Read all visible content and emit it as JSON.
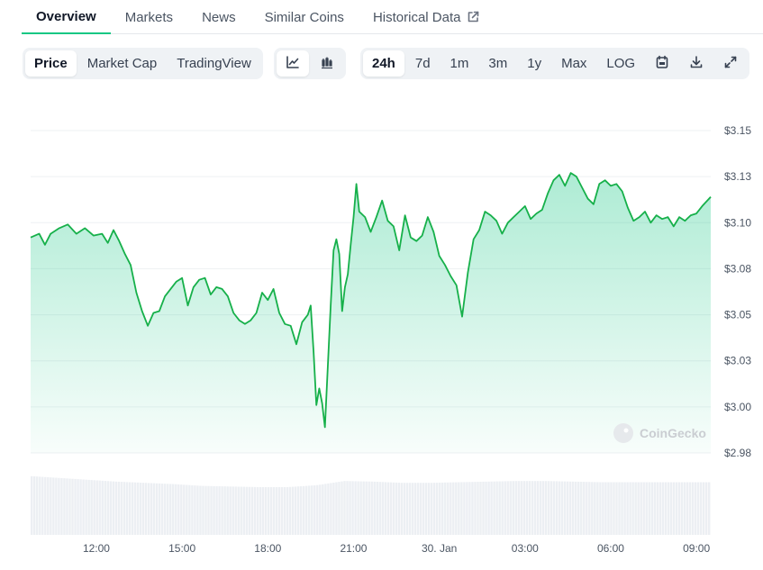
{
  "tabs": [
    {
      "label": "Overview",
      "active": true
    },
    {
      "label": "Markets",
      "active": false
    },
    {
      "label": "News",
      "active": false
    },
    {
      "label": "Similar Coins",
      "active": false
    },
    {
      "label": "Historical Data",
      "active": false,
      "icon": "external-link-icon"
    }
  ],
  "toolbar": {
    "chart_types": [
      {
        "label": "Price",
        "active": true
      },
      {
        "label": "Market Cap",
        "active": false
      },
      {
        "label": "TradingView",
        "active": false
      }
    ],
    "view_icons": [
      {
        "icon": "line-chart-icon",
        "active": true
      },
      {
        "icon": "candlestick-icon",
        "active": false
      }
    ],
    "ranges": [
      {
        "label": "24h",
        "active": true
      },
      {
        "label": "7d",
        "active": false
      },
      {
        "label": "1m",
        "active": false
      },
      {
        "label": "3m",
        "active": false
      },
      {
        "label": "1y",
        "active": false
      },
      {
        "label": "Max",
        "active": false
      },
      {
        "label": "LOG",
        "active": false
      }
    ],
    "tool_icons": [
      "calendar-icon",
      "download-icon",
      "expand-icon"
    ]
  },
  "watermark": "CoinGecko",
  "colors": {
    "line": "#16b04a",
    "accent": "#16c784",
    "volume": "#eceff3",
    "grid": "#eef0f3"
  },
  "chart_data": {
    "type": "area",
    "title": "",
    "xlabel": "",
    "ylabel": "",
    "x_tick_labels": [
      "12:00",
      "15:00",
      "18:00",
      "21:00",
      "30. Jan",
      "03:00",
      "06:00",
      "09:00"
    ],
    "x_tick_hours": [
      2.3,
      5.3,
      8.3,
      11.3,
      14.3,
      17.3,
      20.3,
      23.3
    ],
    "y_tick_labels": [
      "$3.15",
      "$3.13",
      "$3.10",
      "$3.08",
      "$3.05",
      "$3.03",
      "$3.00",
      "$2.98"
    ],
    "y_tick_values": [
      3.15,
      3.125,
      3.1,
      3.075,
      3.05,
      3.025,
      3.0,
      2.975
    ],
    "ylim": [
      2.975,
      3.15
    ],
    "x_range_hours": [
      0,
      23.8
    ],
    "grid": true,
    "price_series": [
      [
        0.0,
        3.092
      ],
      [
        0.3,
        3.094
      ],
      [
        0.5,
        3.088
      ],
      [
        0.7,
        3.094
      ],
      [
        1.0,
        3.097
      ],
      [
        1.3,
        3.099
      ],
      [
        1.6,
        3.094
      ],
      [
        1.9,
        3.097
      ],
      [
        2.2,
        3.093
      ],
      [
        2.5,
        3.094
      ],
      [
        2.7,
        3.089
      ],
      [
        2.9,
        3.096
      ],
      [
        3.1,
        3.09
      ],
      [
        3.3,
        3.083
      ],
      [
        3.5,
        3.077
      ],
      [
        3.7,
        3.062
      ],
      [
        3.9,
        3.052
      ],
      [
        4.1,
        3.044
      ],
      [
        4.3,
        3.051
      ],
      [
        4.5,
        3.052
      ],
      [
        4.7,
        3.06
      ],
      [
        4.9,
        3.064
      ],
      [
        5.1,
        3.068
      ],
      [
        5.3,
        3.07
      ],
      [
        5.5,
        3.055
      ],
      [
        5.7,
        3.065
      ],
      [
        5.9,
        3.069
      ],
      [
        6.1,
        3.07
      ],
      [
        6.3,
        3.061
      ],
      [
        6.5,
        3.065
      ],
      [
        6.7,
        3.064
      ],
      [
        6.9,
        3.06
      ],
      [
        7.1,
        3.051
      ],
      [
        7.3,
        3.047
      ],
      [
        7.5,
        3.045
      ],
      [
        7.7,
        3.047
      ],
      [
        7.9,
        3.051
      ],
      [
        8.1,
        3.062
      ],
      [
        8.3,
        3.058
      ],
      [
        8.5,
        3.064
      ],
      [
        8.7,
        3.051
      ],
      [
        8.9,
        3.045
      ],
      [
        9.1,
        3.044
      ],
      [
        9.3,
        3.034
      ],
      [
        9.5,
        3.046
      ],
      [
        9.7,
        3.05
      ],
      [
        9.8,
        3.055
      ],
      [
        9.9,
        3.03
      ],
      [
        10.0,
        3.001
      ],
      [
        10.1,
        3.01
      ],
      [
        10.2,
        3.002
      ],
      [
        10.3,
        2.989
      ],
      [
        10.4,
        3.022
      ],
      [
        10.5,
        3.055
      ],
      [
        10.6,
        3.085
      ],
      [
        10.7,
        3.091
      ],
      [
        10.8,
        3.083
      ],
      [
        10.9,
        3.052
      ],
      [
        11.0,
        3.065
      ],
      [
        11.1,
        3.072
      ],
      [
        11.2,
        3.088
      ],
      [
        11.3,
        3.103
      ],
      [
        11.4,
        3.121
      ],
      [
        11.5,
        3.106
      ],
      [
        11.7,
        3.103
      ],
      [
        11.9,
        3.095
      ],
      [
        12.1,
        3.103
      ],
      [
        12.3,
        3.112
      ],
      [
        12.5,
        3.101
      ],
      [
        12.7,
        3.098
      ],
      [
        12.9,
        3.085
      ],
      [
        13.1,
        3.104
      ],
      [
        13.3,
        3.092
      ],
      [
        13.5,
        3.09
      ],
      [
        13.7,
        3.093
      ],
      [
        13.9,
        3.103
      ],
      [
        14.1,
        3.095
      ],
      [
        14.3,
        3.082
      ],
      [
        14.5,
        3.077
      ],
      [
        14.7,
        3.071
      ],
      [
        14.9,
        3.066
      ],
      [
        15.1,
        3.049
      ],
      [
        15.3,
        3.073
      ],
      [
        15.5,
        3.091
      ],
      [
        15.7,
        3.096
      ],
      [
        15.9,
        3.106
      ],
      [
        16.1,
        3.104
      ],
      [
        16.3,
        3.101
      ],
      [
        16.5,
        3.094
      ],
      [
        16.7,
        3.1
      ],
      [
        16.9,
        3.103
      ],
      [
        17.1,
        3.106
      ],
      [
        17.3,
        3.109
      ],
      [
        17.5,
        3.102
      ],
      [
        17.7,
        3.105
      ],
      [
        17.9,
        3.107
      ],
      [
        18.1,
        3.116
      ],
      [
        18.3,
        3.123
      ],
      [
        18.5,
        3.126
      ],
      [
        18.7,
        3.12
      ],
      [
        18.9,
        3.127
      ],
      [
        19.1,
        3.125
      ],
      [
        19.3,
        3.119
      ],
      [
        19.5,
        3.113
      ],
      [
        19.7,
        3.11
      ],
      [
        19.9,
        3.121
      ],
      [
        20.1,
        3.123
      ],
      [
        20.3,
        3.12
      ],
      [
        20.5,
        3.121
      ],
      [
        20.7,
        3.117
      ],
      [
        20.9,
        3.108
      ],
      [
        21.1,
        3.101
      ],
      [
        21.3,
        3.103
      ],
      [
        21.5,
        3.106
      ],
      [
        21.7,
        3.1
      ],
      [
        21.9,
        3.104
      ],
      [
        22.1,
        3.102
      ],
      [
        22.3,
        3.103
      ],
      [
        22.5,
        3.098
      ],
      [
        22.7,
        3.103
      ],
      [
        22.9,
        3.101
      ],
      [
        23.1,
        3.104
      ],
      [
        23.3,
        3.105
      ],
      [
        23.5,
        3.109
      ],
      [
        23.8,
        3.114
      ]
    ],
    "volume_series": {
      "note_unit": "relative",
      "x": [
        0,
        1,
        2,
        3,
        4,
        5,
        6,
        7,
        8,
        9,
        10,
        11,
        12,
        13,
        14,
        15,
        16,
        17,
        18,
        19,
        20,
        21,
        22,
        23,
        23.8
      ],
      "values": [
        0.96,
        0.93,
        0.9,
        0.87,
        0.85,
        0.83,
        0.8,
        0.79,
        0.78,
        0.78,
        0.81,
        0.88,
        0.87,
        0.85,
        0.85,
        0.86,
        0.87,
        0.88,
        0.88,
        0.87,
        0.86,
        0.86,
        0.86,
        0.86,
        0.86
      ]
    }
  }
}
